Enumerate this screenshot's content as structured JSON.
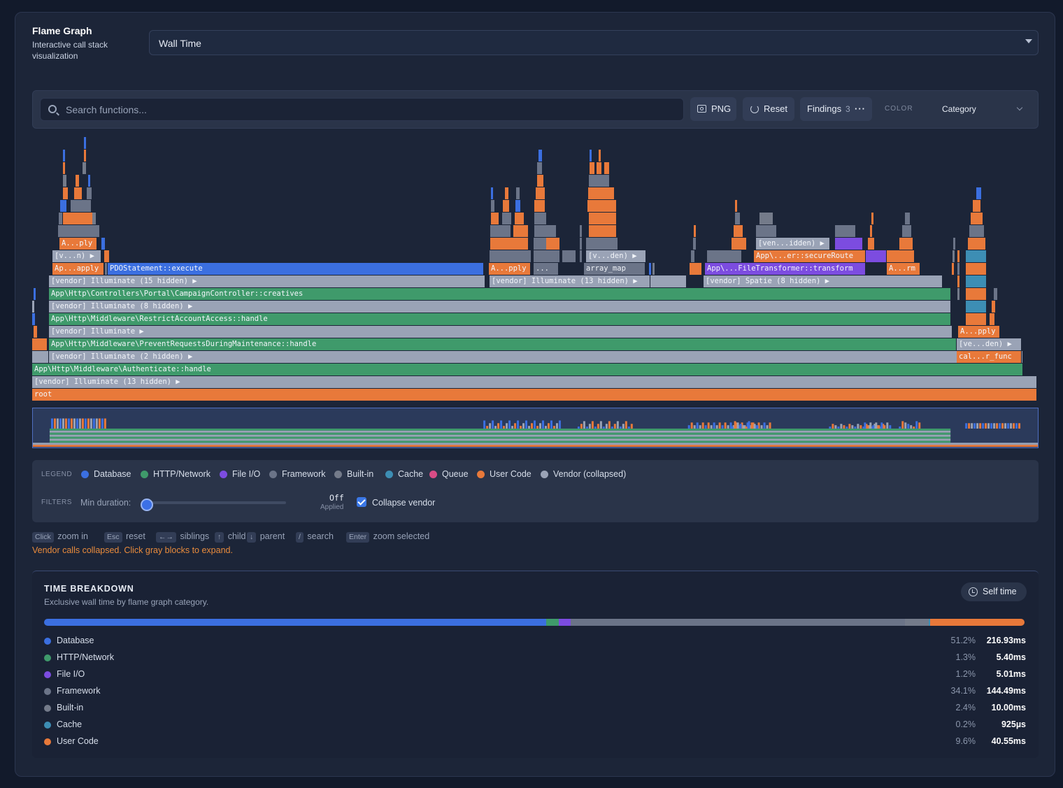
{
  "header": {
    "title": "Flame Graph",
    "subtitle": "Interactive call stack visualization",
    "mode": "Wall Time"
  },
  "toolbar": {
    "search_placeholder": "Search functions...",
    "png_label": "PNG",
    "reset_label": "Reset",
    "findings_label": "Findings",
    "findings_count": "3",
    "color_label": "COLOR",
    "color_value": "Category"
  },
  "flame": {
    "frames": [
      {
        "label": "root",
        "cat": "user"
      },
      {
        "label": "[vendor] Illuminate (13 hidden) ▶",
        "cat": "vendor"
      },
      {
        "label": "App\\Http\\Middleware\\Authenticate::handle",
        "cat": "http"
      },
      {
        "label": "[vendor] Illuminate (2 hidden) ▶",
        "cat": "vendor"
      },
      {
        "label": "App\\Http\\Middleware\\PreventRequestsDuringMaintenance::handle",
        "cat": "http"
      },
      {
        "label": "[vendor] Illuminate ▶",
        "cat": "vendor"
      },
      {
        "label": "App\\Http\\Middleware\\RestrictAccountAccess::handle",
        "cat": "http"
      },
      {
        "label": "[vendor] Illuminate (8 hidden) ▶",
        "cat": "vendor"
      },
      {
        "label": "App\\Http\\Controllers\\Portal\\CampaignController::creatives",
        "cat": "http"
      },
      {
        "label": "[vendor] Illuminate (15 hidden) ▶",
        "cat": "vendor"
      },
      {
        "label": "[vendor] Illuminate (13 hidden) ▶",
        "cat": "vendor"
      },
      {
        "label": "[vendor] Spatie (8 hidden) ▶",
        "cat": "vendor"
      },
      {
        "label": "Ap...apply",
        "cat": "user"
      },
      {
        "label": "PDOStatement::execute",
        "cat": "database"
      },
      {
        "label": "A...pply",
        "cat": "user"
      },
      {
        "label": "...",
        "cat": "framework"
      },
      {
        "label": "array_map",
        "cat": "framework"
      },
      {
        "label": "App\\...FileTransformer::transform",
        "cat": "fileio"
      },
      {
        "label": "A...rm",
        "cat": "user"
      },
      {
        "label": "[v...n) ▶",
        "cat": "vendor"
      },
      {
        "label": "[v...den) ▶",
        "cat": "vendor"
      },
      {
        "label": "App\\...er::secureRoute",
        "cat": "user"
      },
      {
        "label": "A...ply",
        "cat": "user"
      },
      {
        "label": "[ven...idden) ▶",
        "cat": "vendor"
      },
      {
        "label": "cal...r_func",
        "cat": "user"
      },
      {
        "label": "[ve...den) ▶",
        "cat": "vendor"
      },
      {
        "label": "A...pply",
        "cat": "user"
      }
    ]
  },
  "legend": {
    "label": "LEGEND",
    "items": [
      {
        "name": "Database",
        "color": "#3b6fe0"
      },
      {
        "name": "HTTP/Network",
        "color": "#3f9a6b"
      },
      {
        "name": "File I/O",
        "color": "#7c4ce0"
      },
      {
        "name": "Framework",
        "color": "#6b7488"
      },
      {
        "name": "Built-in",
        "color": "#747b8a"
      },
      {
        "name": "Cache",
        "color": "#3d8eb4"
      },
      {
        "name": "Queue",
        "color": "#d94c86"
      },
      {
        "name": "User Code",
        "color": "#e8793a"
      },
      {
        "name": "Vendor (collapsed)",
        "color": "#9aa3b6"
      }
    ]
  },
  "filters": {
    "label": "FILTERS",
    "min_duration_label": "Min duration:",
    "min_duration_value": "Off",
    "applied_label": "Applied",
    "collapse_vendor_label": "Collapse vendor",
    "collapse_vendor_checked": true
  },
  "hints": [
    {
      "key": "Click",
      "text": "zoom in"
    },
    {
      "key": "Esc",
      "text": "reset"
    },
    {
      "key": "←→",
      "text": "siblings"
    },
    {
      "key": "↑",
      "text": "child"
    },
    {
      "key": "↓",
      "text": "parent"
    },
    {
      "key": "/",
      "text": "search"
    },
    {
      "key": "Enter",
      "text": "zoom selected"
    }
  ],
  "vendor_note": "Vendor calls collapsed. Click gray blocks to expand.",
  "breakdown": {
    "title": "TIME BREAKDOWN",
    "subtitle": "Exclusive wall time by flame graph category.",
    "self_time_label": "Self time",
    "rows": [
      {
        "name": "Database",
        "pct": "51.2%",
        "time": "216.93ms",
        "color": "#3b6fe0",
        "share": 51.2
      },
      {
        "name": "HTTP/Network",
        "pct": "1.3%",
        "time": "5.40ms",
        "color": "#3f9a6b",
        "share": 1.3
      },
      {
        "name": "File I/O",
        "pct": "1.2%",
        "time": "5.01ms",
        "color": "#7c4ce0",
        "share": 1.2
      },
      {
        "name": "Framework",
        "pct": "34.1%",
        "time": "144.49ms",
        "color": "#6b7488",
        "share": 34.1
      },
      {
        "name": "Built-in",
        "pct": "2.4%",
        "time": "10.00ms",
        "color": "#747b8a",
        "share": 2.4
      },
      {
        "name": "Cache",
        "pct": "0.2%",
        "time": "925µs",
        "color": "#3d8eb4",
        "share": 0.2
      },
      {
        "name": "User Code",
        "pct": "9.6%",
        "time": "40.55ms",
        "color": "#e8793a",
        "share": 9.6
      }
    ]
  }
}
